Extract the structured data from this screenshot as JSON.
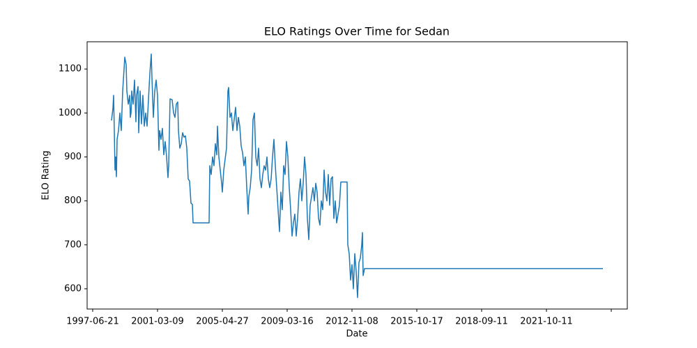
{
  "chart_data": {
    "type": "line",
    "title": "ELO Ratings Over Time for Sedan",
    "xlabel": "Date",
    "ylabel": "ELO Rating",
    "x": [
      27,
      29,
      30,
      31,
      32,
      33,
      34,
      35,
      37,
      39,
      41,
      43,
      45,
      46,
      48,
      49,
      51,
      53,
      54,
      55,
      56,
      58,
      60,
      62,
      63,
      65,
      66,
      68,
      70,
      72,
      74,
      76,
      78,
      80,
      82,
      84,
      85,
      87,
      89,
      91,
      93,
      95,
      96,
      98,
      100,
      102,
      104,
      106,
      108,
      109,
      111,
      114,
      116,
      118,
      120,
      122,
      123,
      125,
      127,
      129,
      131,
      133,
      135,
      137,
      139,
      141,
      143,
      144,
      167,
      168,
      170,
      172,
      174,
      176,
      178,
      179,
      181,
      183,
      185,
      186,
      188,
      190,
      192,
      194,
      195,
      197,
      199,
      201,
      203,
      205,
      207,
      209,
      211,
      213,
      215,
      217,
      219,
      221,
      223,
      224,
      226,
      228,
      230,
      232,
      234,
      236,
      238,
      240,
      242,
      244,
      246,
      248,
      250,
      252,
      254,
      256,
      258,
      260,
      262,
      264,
      266,
      268,
      270,
      272,
      274,
      276,
      278,
      280,
      282,
      284,
      286,
      288,
      290,
      292,
      294,
      296,
      298,
      300,
      302,
      304,
      306,
      308,
      310,
      312,
      314,
      316,
      318,
      320,
      322,
      324,
      326,
      328,
      330,
      332,
      334,
      336,
      338,
      340,
      342,
      344,
      346,
      348,
      350,
      352,
      354,
      356,
      365,
      366,
      368,
      370,
      372,
      374,
      376,
      378,
      380,
      382,
      384,
      386,
      387,
      388,
      390,
      732
    ],
    "series": [
      {
        "name": "ELO Rating",
        "color": "#1f77b4",
        "values": [
          983,
          1010,
          1040,
          960,
          870,
          900,
          855,
          940,
          960,
          1000,
          960,
          1050,
          1100,
          1127,
          1110,
          1050,
          1020,
          1040,
          990,
          1000,
          1050,
          1020,
          1075,
          980,
          1040,
          1060,
          955,
          1050,
          975,
          1040,
          970,
          1000,
          970,
          1030,
          1090,
          1134,
          1080,
          990,
          1050,
          1075,
          1040,
          915,
          960,
          940,
          965,
          905,
          935,
          900,
          853,
          880,
          1032,
          1030,
          1000,
          990,
          1020,
          1025,
          960,
          920,
          930,
          955,
          945,
          948,
          920,
          850,
          845,
          795,
          792,
          750,
          750,
          880,
          860,
          900,
          880,
          930,
          905,
          970,
          900,
          870,
          840,
          820,
          870,
          895,
          920,
          1050,
          1058,
          990,
          1000,
          960,
          985,
          1013,
          960,
          990,
          970,
          925,
          910,
          880,
          900,
          830,
          770,
          810,
          830,
          870,
          985,
          1000,
          900,
          880,
          920,
          850,
          830,
          860,
          880,
          870,
          900,
          850,
          830,
          850,
          900,
          940,
          880,
          830,
          780,
          730,
          820,
          780,
          880,
          860,
          935,
          900,
          830,
          780,
          720,
          750,
          770,
          720,
          760,
          820,
          850,
          800,
          840,
          900,
          860,
          760,
          712,
          790,
          810,
          830,
          800,
          840,
          820,
          760,
          745,
          800,
          780,
          870,
          820,
          800,
          860,
          790,
          850,
          855,
          760,
          800,
          750,
          770,
          790,
          843,
          843,
          700,
          680,
          620,
          655,
          600,
          680,
          640,
          580,
          660,
          670,
          700,
          728,
          630,
          646,
          646
        ]
      }
    ],
    "xlim": [
      -8,
      767
    ],
    "xticks": [
      {
        "value": 0,
        "label": "1997-06-21"
      },
      {
        "value": 93,
        "label": "2001-03-09"
      },
      {
        "value": 186,
        "label": "2005-04-27"
      },
      {
        "value": 279,
        "label": "2009-03-16"
      },
      {
        "value": 372,
        "label": "2012-11-08"
      },
      {
        "value": 465,
        "label": "2015-10-17"
      },
      {
        "value": 558,
        "label": "2018-09-11"
      },
      {
        "value": 651,
        "label": "2021-10-11"
      },
      {
        "value": 744,
        "label": null
      }
    ],
    "ylim": [
      554,
      1162
    ],
    "yticks": [
      600,
      700,
      800,
      900,
      1000,
      1100
    ],
    "grid": false
  }
}
